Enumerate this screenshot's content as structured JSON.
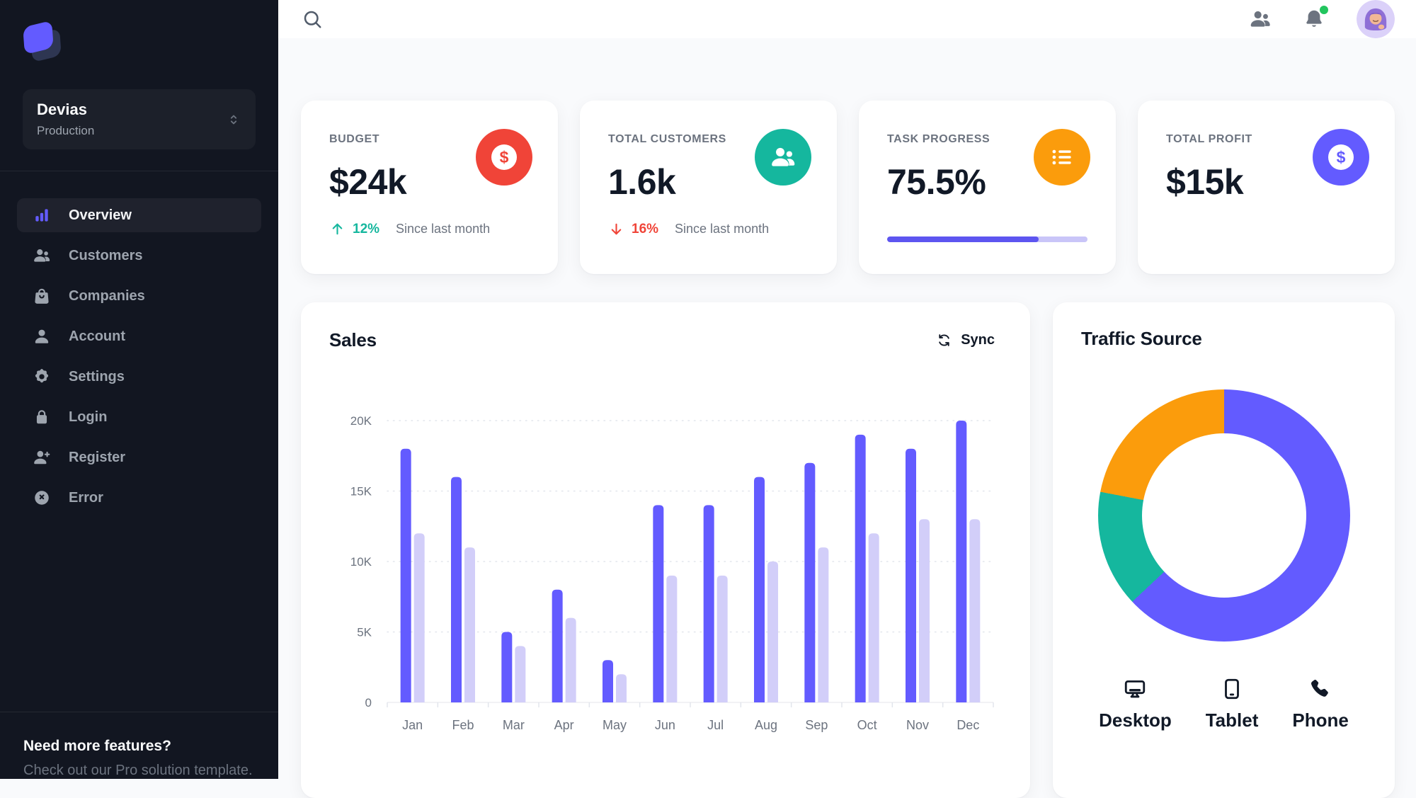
{
  "colors": {
    "primary": "#635bff",
    "primary_light": "#d2cef9",
    "success": "#15b79e",
    "error": "#f04438",
    "warning": "#fb9c0c",
    "text_primary": "#111927",
    "text_secondary": "#6c737f",
    "sidebar_bg": "#121621",
    "online_dot": "#22c55e"
  },
  "sidebar": {
    "workspace": {
      "name": "Devias",
      "env": "Production"
    },
    "nav": [
      {
        "label": "Overview",
        "icon": "chart-bar",
        "active": true
      },
      {
        "label": "Customers",
        "icon": "users",
        "active": false
      },
      {
        "label": "Companies",
        "icon": "shopping-bag",
        "active": false
      },
      {
        "label": "Account",
        "icon": "user",
        "active": false
      },
      {
        "label": "Settings",
        "icon": "gear",
        "active": false
      },
      {
        "label": "Login",
        "icon": "lock",
        "active": false
      },
      {
        "label": "Register",
        "icon": "user-plus",
        "active": false
      },
      {
        "label": "Error",
        "icon": "x-circle",
        "active": false
      }
    ],
    "footer": {
      "title": "Need more features?",
      "subtitle": "Check out our Pro solution template."
    }
  },
  "stats": [
    {
      "label": "BUDGET",
      "value": "$24k",
      "icon": "dollar",
      "icon_bg": "#f04438",
      "trend": {
        "dir": "up",
        "value": "12%",
        "color": "#15b79e"
      },
      "caption": "Since last month"
    },
    {
      "label": "TOTAL CUSTOMERS",
      "value": "1.6k",
      "icon": "users",
      "icon_bg": "#15b79e",
      "trend": {
        "dir": "down",
        "value": "16%",
        "color": "#f04438"
      },
      "caption": "Since last month"
    },
    {
      "label": "TASK PROGRESS",
      "value": "75.5%",
      "icon": "list",
      "icon_bg": "#fb9c0c",
      "progress": 75.5
    },
    {
      "label": "TOTAL PROFIT",
      "value": "$15k",
      "icon": "dollar",
      "icon_bg": "#635bff"
    }
  ],
  "sales": {
    "title": "Sales",
    "sync_label": "Sync"
  },
  "traffic": {
    "title": "Traffic Source",
    "legend": [
      {
        "label": "Desktop",
        "icon": "desktop"
      },
      {
        "label": "Tablet",
        "icon": "tablet"
      },
      {
        "label": "Phone",
        "icon": "phone"
      }
    ]
  },
  "chart_data": [
    {
      "type": "bar",
      "title": "Sales",
      "categories": [
        "Jan",
        "Feb",
        "Mar",
        "Apr",
        "May",
        "Jun",
        "Jul",
        "Aug",
        "Sep",
        "Oct",
        "Nov",
        "Dec"
      ],
      "series": [
        {
          "name": "series1",
          "color": "#635bff",
          "values": [
            18000,
            16000,
            5000,
            8000,
            3000,
            14000,
            14000,
            16000,
            17000,
            19000,
            18000,
            20000
          ]
        },
        {
          "name": "series2",
          "color": "#d2cef9",
          "values": [
            12000,
            11000,
            4000,
            6000,
            2000,
            9000,
            9000,
            10000,
            11000,
            12000,
            13000,
            13000
          ]
        }
      ],
      "ylim": [
        0,
        20000
      ],
      "ytick_values": [
        0,
        5000,
        10000,
        15000,
        20000
      ],
      "ytick_labels": [
        "0",
        "5K",
        "10K",
        "15K",
        "20K"
      ],
      "grid": "horizontal-dotted",
      "legend_position": "none"
    },
    {
      "type": "pie",
      "title": "Traffic Source",
      "labels": [
        "Desktop",
        "Tablet",
        "Phone"
      ],
      "values": [
        63,
        15,
        22
      ],
      "colors": [
        "#635bff",
        "#15b79e",
        "#fb9c0c"
      ],
      "donut": true
    }
  ]
}
